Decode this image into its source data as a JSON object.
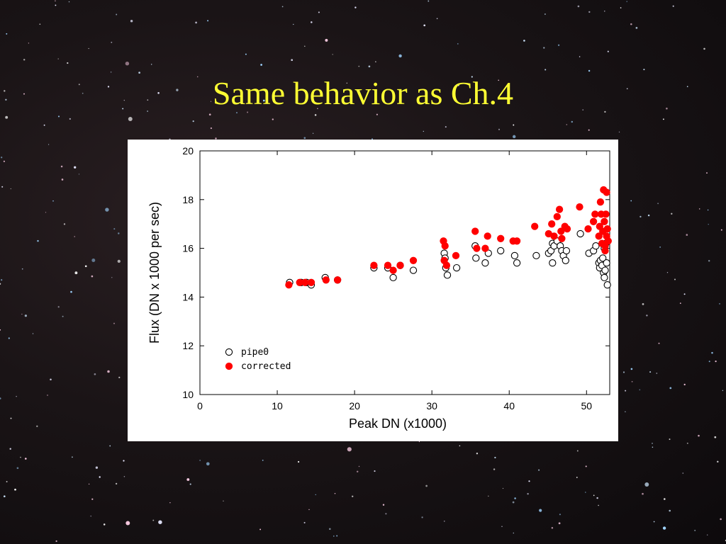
{
  "slide": {
    "title": "Same behavior as Ch.4"
  },
  "colors": {
    "title": "#ffff33",
    "corrected": "#ff0000",
    "pipe0": "#000000",
    "background": "#1a1416"
  },
  "chart_data": {
    "type": "scatter",
    "title": "",
    "xlabel": "Peak DN (x1000)",
    "ylabel": "Flux (DN x 1000 per sec)",
    "xlim": [
      0,
      53
    ],
    "ylim": [
      10,
      20
    ],
    "xticks": [
      0,
      10,
      20,
      30,
      40,
      50
    ],
    "yticks": [
      10,
      12,
      14,
      16,
      18,
      20
    ],
    "legend_position": "bottom-left",
    "grid": false,
    "series": [
      {
        "name": "pipe0",
        "marker": "open-circle",
        "points": [
          [
            11.6,
            14.6
          ],
          [
            13.1,
            14.6
          ],
          [
            13.8,
            14.6
          ],
          [
            14.4,
            14.5
          ],
          [
            16.2,
            14.8
          ],
          [
            17.8,
            14.7
          ],
          [
            22.5,
            15.2
          ],
          [
            24.3,
            15.2
          ],
          [
            25.0,
            14.8
          ],
          [
            25.9,
            15.3
          ],
          [
            27.6,
            15.1
          ],
          [
            31.6,
            15.8
          ],
          [
            31.7,
            15.6
          ],
          [
            31.8,
            15.2
          ],
          [
            32.0,
            14.9
          ],
          [
            33.2,
            15.2
          ],
          [
            35.6,
            16.1
          ],
          [
            35.7,
            15.6
          ],
          [
            36.9,
            15.4
          ],
          [
            37.3,
            15.8
          ],
          [
            38.9,
            15.9
          ],
          [
            40.7,
            15.7
          ],
          [
            41.0,
            15.4
          ],
          [
            43.5,
            15.7
          ],
          [
            45.1,
            15.8
          ],
          [
            45.4,
            15.9
          ],
          [
            45.6,
            16.2
          ],
          [
            45.8,
            16.1
          ],
          [
            45.6,
            15.4
          ],
          [
            46.2,
            16.3
          ],
          [
            46.6,
            16.1
          ],
          [
            46.8,
            15.9
          ],
          [
            47.0,
            15.7
          ],
          [
            47.3,
            15.5
          ],
          [
            47.4,
            15.9
          ],
          [
            49.2,
            16.6
          ],
          [
            50.3,
            15.8
          ],
          [
            50.9,
            15.9
          ],
          [
            51.2,
            16.1
          ],
          [
            51.6,
            15.4
          ],
          [
            51.7,
            15.2
          ],
          [
            51.8,
            15.5
          ],
          [
            52.0,
            15.3
          ],
          [
            52.1,
            15.6
          ],
          [
            52.2,
            15.0
          ],
          [
            52.3,
            14.8
          ],
          [
            52.4,
            15.1
          ],
          [
            52.6,
            15.4
          ],
          [
            52.7,
            14.5
          ],
          [
            52.5,
            16.2
          ],
          [
            52.3,
            16.0
          ]
        ]
      },
      {
        "name": "corrected",
        "marker": "filled-circle",
        "points": [
          [
            11.5,
            14.5
          ],
          [
            12.9,
            14.6
          ],
          [
            13.6,
            14.6
          ],
          [
            14.4,
            14.6
          ],
          [
            16.3,
            14.7
          ],
          [
            17.8,
            14.7
          ],
          [
            22.5,
            15.3
          ],
          [
            24.3,
            15.3
          ],
          [
            25.0,
            15.1
          ],
          [
            25.9,
            15.3
          ],
          [
            27.6,
            15.5
          ],
          [
            31.5,
            16.3
          ],
          [
            31.7,
            16.1
          ],
          [
            31.6,
            15.5
          ],
          [
            31.9,
            15.3
          ],
          [
            33.1,
            15.7
          ],
          [
            35.6,
            16.7
          ],
          [
            35.8,
            16.0
          ],
          [
            36.9,
            16.0
          ],
          [
            37.2,
            16.5
          ],
          [
            38.9,
            16.4
          ],
          [
            40.5,
            16.3
          ],
          [
            41.0,
            16.3
          ],
          [
            43.3,
            16.9
          ],
          [
            45.1,
            16.6
          ],
          [
            45.5,
            17.0
          ],
          [
            45.8,
            16.5
          ],
          [
            46.2,
            17.3
          ],
          [
            46.5,
            17.6
          ],
          [
            46.7,
            16.7
          ],
          [
            46.8,
            16.4
          ],
          [
            47.2,
            16.9
          ],
          [
            47.5,
            16.8
          ],
          [
            49.1,
            17.7
          ],
          [
            50.2,
            16.8
          ],
          [
            50.9,
            17.1
          ],
          [
            51.1,
            17.4
          ],
          [
            51.6,
            16.5
          ],
          [
            51.7,
            16.9
          ],
          [
            51.8,
            17.9
          ],
          [
            51.9,
            17.4
          ],
          [
            52.0,
            16.2
          ],
          [
            52.1,
            16.7
          ],
          [
            52.2,
            18.4
          ],
          [
            52.3,
            17.1
          ],
          [
            52.4,
            15.9
          ],
          [
            52.5,
            17.4
          ],
          [
            52.6,
            16.5
          ],
          [
            52.7,
            16.8
          ],
          [
            52.8,
            16.3
          ],
          [
            52.6,
            18.3
          ],
          [
            52.4,
            16.1
          ]
        ]
      }
    ]
  }
}
